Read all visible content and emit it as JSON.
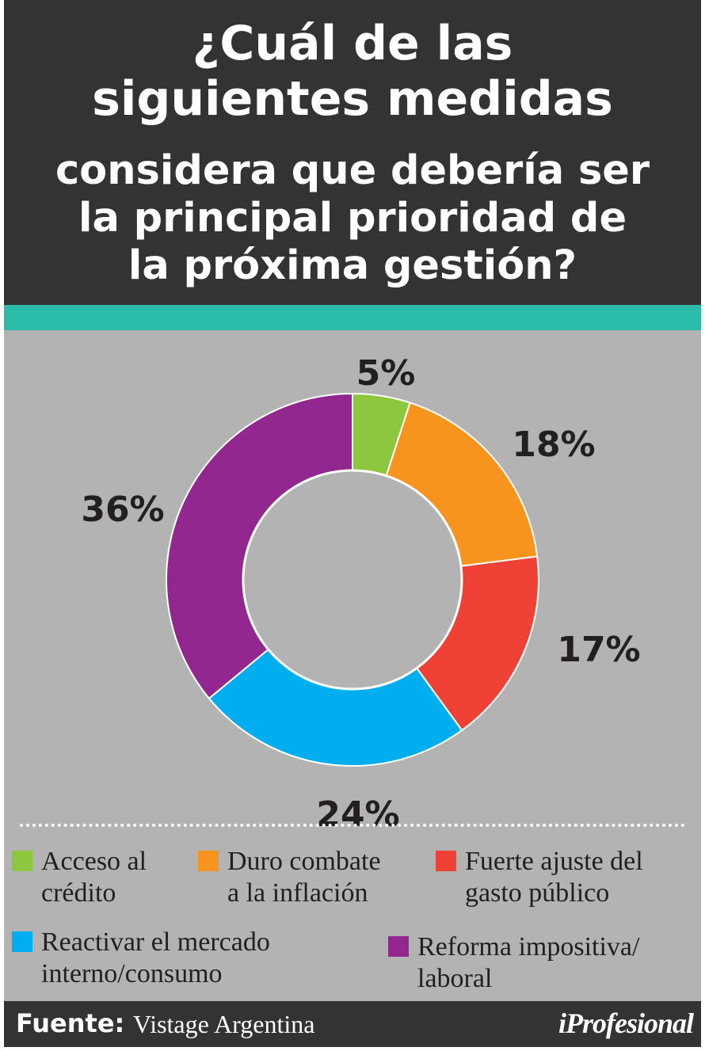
{
  "header": {
    "title_lines": [
      "¿Cuál de las",
      "siguientes medidas",
      "considera que debería ser",
      "la principal prioridad de",
      "la próxima gestión?"
    ]
  },
  "colors": {
    "header_bg": "#333333",
    "accent_teal": "#2bbcaa",
    "panel_bg": "#b3b3b3"
  },
  "chart_data": {
    "type": "pie",
    "variant": "donut",
    "series": [
      {
        "name": "Acceso al crédito",
        "label": "5%",
        "value": 5,
        "color": "#8dc63f"
      },
      {
        "name": "Duro combate a la inflación",
        "label": "18%",
        "value": 18,
        "color": "#f7941d"
      },
      {
        "name": "Fuerte ajuste del gasto público",
        "label": "17%",
        "value": 17,
        "color": "#ef4136"
      },
      {
        "name": "Reactivar el mercado interno/consumo",
        "label": "24%",
        "value": 24,
        "color": "#00aeef"
      },
      {
        "name": "Reforma impositiva/ laboral",
        "label": "36%",
        "value": 36,
        "color": "#92278f"
      }
    ]
  },
  "legend": [
    {
      "line1": "Acceso al",
      "line2": "crédito"
    },
    {
      "line1": "Duro combate",
      "line2": "a la inflación"
    },
    {
      "line1": "Fuerte ajuste del",
      "line2": "gasto público"
    },
    {
      "line1": "Reactivar el mercado",
      "line2": "interno/consumo"
    },
    {
      "line1": "Reforma impositiva/",
      "line2": "laboral"
    }
  ],
  "footer": {
    "source_label": "Fuente:",
    "source_value": "Vistage Argentina",
    "logo": "iProfesional"
  }
}
